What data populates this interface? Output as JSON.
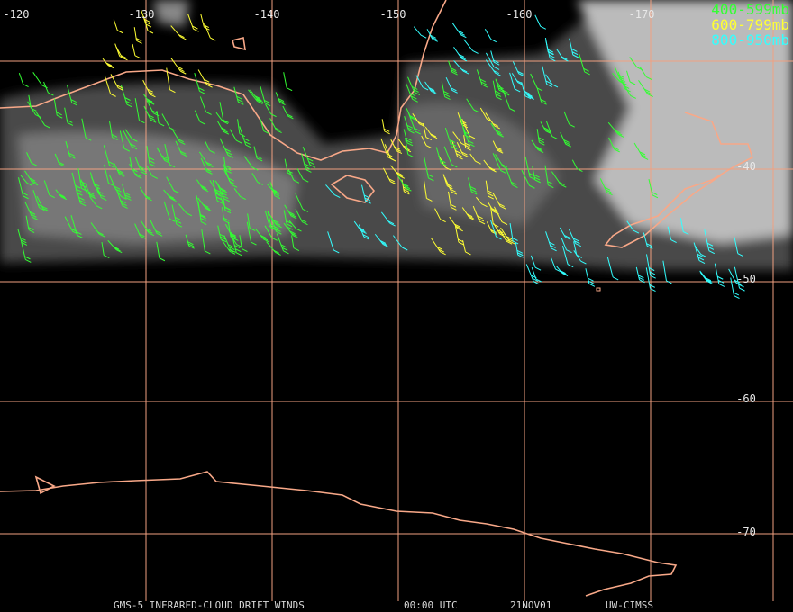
{
  "map": {
    "longitude_labels": [
      "-120",
      "-130",
      "-140",
      "-150",
      "-160",
      "-170"
    ],
    "latitude_labels": [
      "-40",
      "-50",
      "-60",
      "-70"
    ],
    "legend": [
      {
        "label": "400-599mb",
        "color": "#33ff33"
      },
      {
        "label": "600-799mb",
        "color": "#ffff33"
      },
      {
        "label": "800-950mb",
        "color": "#33ffff"
      }
    ],
    "footer": [
      "GMS-5 INFRARED-CLOUD DRIFT WINDS",
      "00:00 UTC",
      "21NOV01",
      "UW-CIMSS"
    ]
  }
}
